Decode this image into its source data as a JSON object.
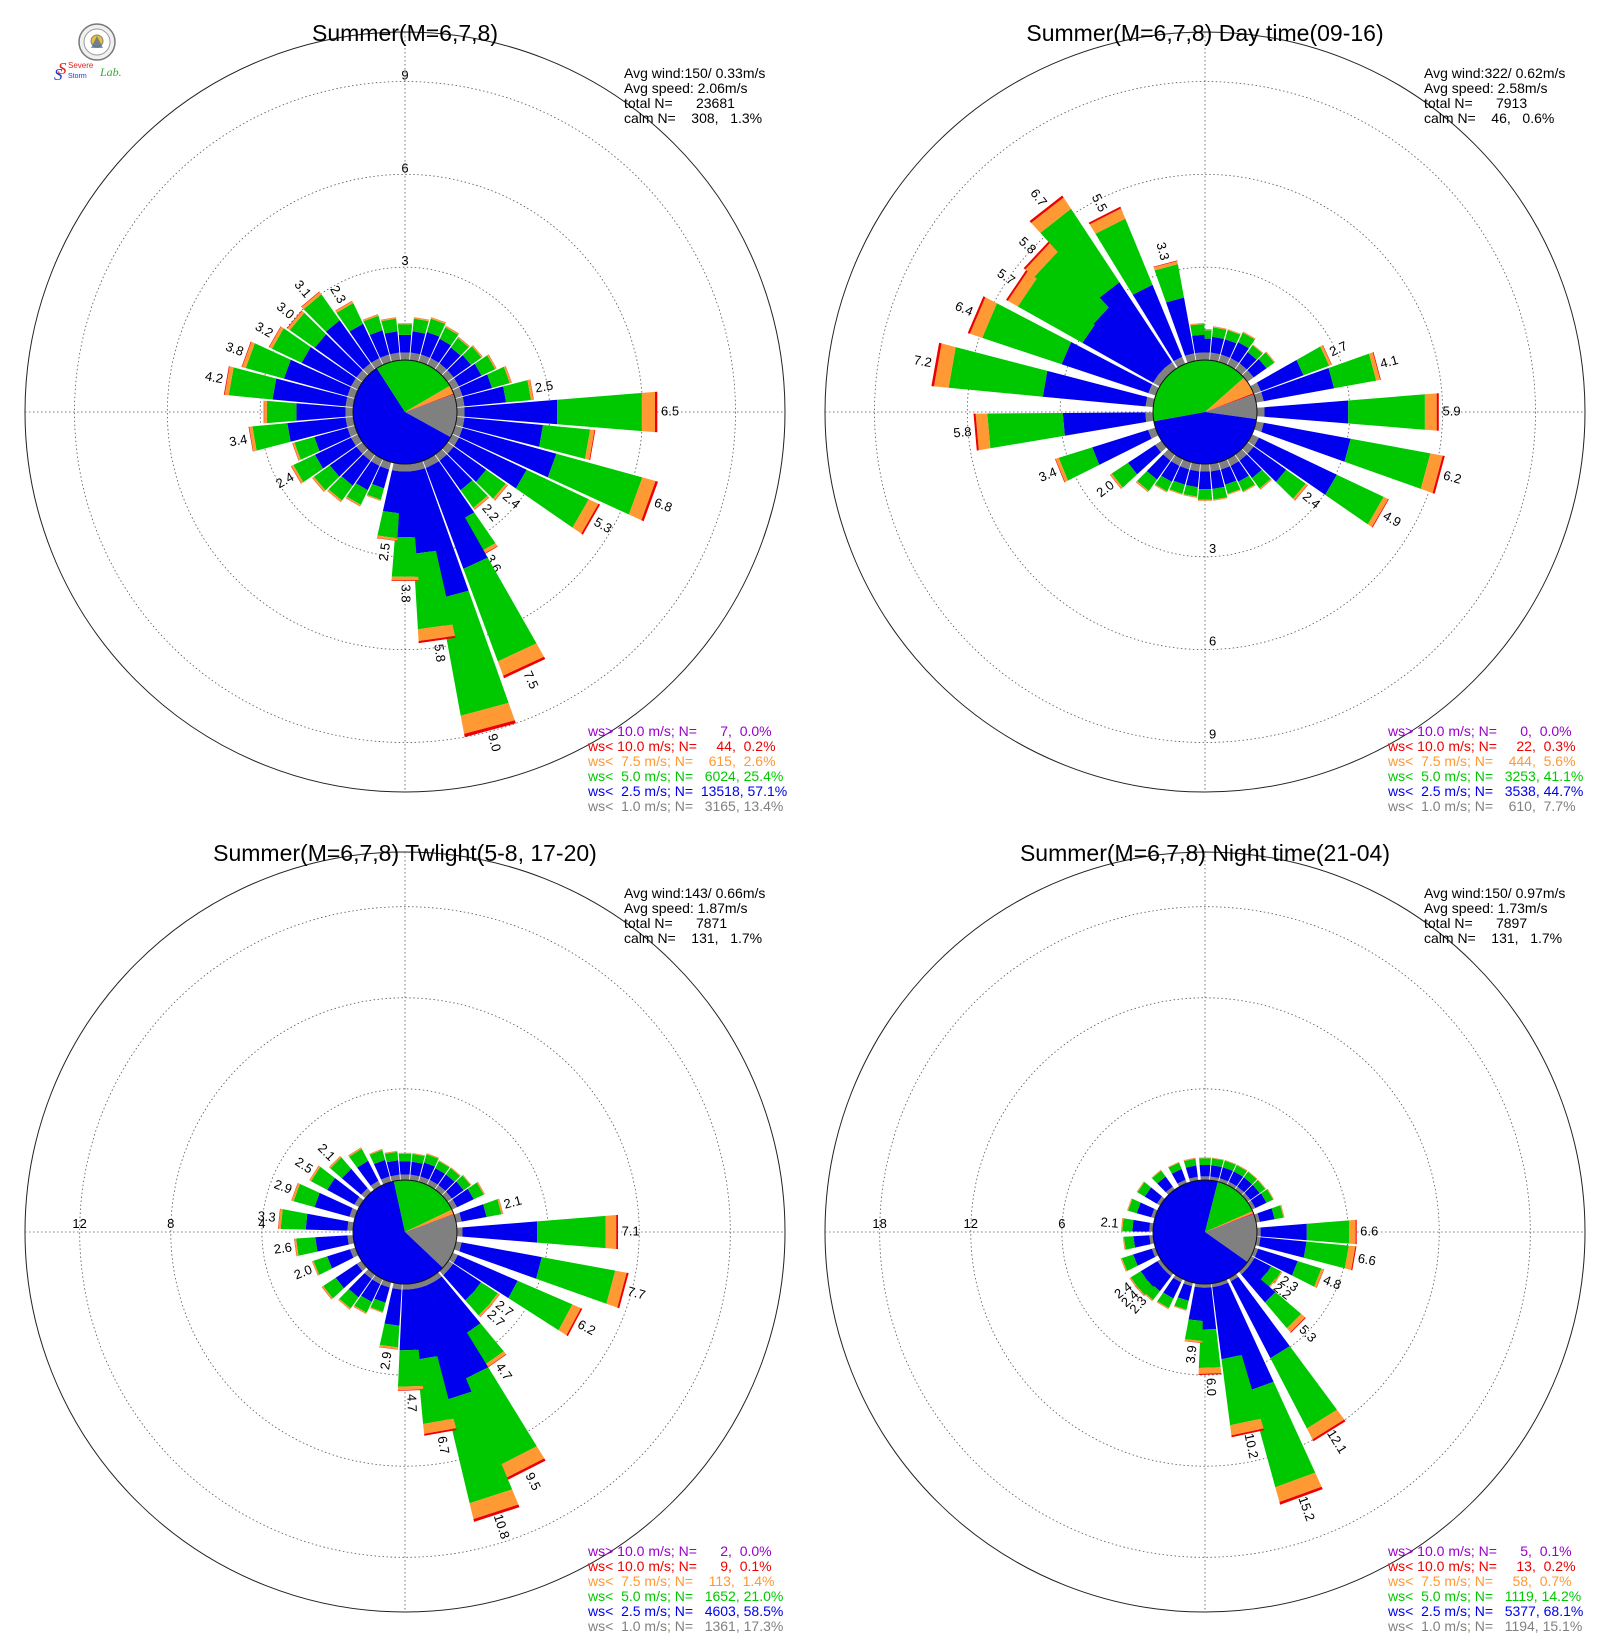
{
  "logo": {
    "line1": "Severe",
    "line2": "Storm",
    "line3": "Lab."
  },
  "colors": {
    "calm": "#808080",
    "ws1": "#0000ee",
    "ws2": "#00c800",
    "ws3": "#ff9933",
    "ws4": "#ee0000",
    "ws5": "#9900cc",
    "grid": "#555555"
  },
  "legend_colors": [
    "#9900cc",
    "#ee0000",
    "#ff9933",
    "#00c800",
    "#0000ee",
    "#808080"
  ],
  "panels": [
    {
      "title": "Summer(M=6,7,8)",
      "stats": [
        "Avg wind:150/ 0.33m/s",
        "Avg speed: 2.06m/s",
        "total N=      23681",
        "calm N=    308,   1.3%"
      ],
      "legend": [
        "ws> 10.0 m/s; N=      7,  0.0%",
        "ws< 10.0 m/s; N=     44,  0.2%",
        "ws<  7.5 m/s; N=    615,  2.6%",
        "ws<  5.0 m/s; N=   6024, 25.4%",
        "ws<  2.5 m/s; N=  13518, 57.1%",
        "ws<  1.0 m/s; N=   3165, 13.4%"
      ],
      "chart_data": {
        "type": "wind_rose",
        "rings": [
          3,
          6,
          9
        ],
        "ring_labels": [
          "3",
          "6",
          "9"
        ],
        "ring_label_side": "north",
        "rmax": 10.6,
        "pie": [
          13.4,
          57.1,
          25.4,
          2.6,
          0.2,
          0.0
        ],
        "directions": [
          {
            "dir": 0,
            "value": 1.2,
            "label": ""
          },
          {
            "dir": 10,
            "value": 1.4,
            "label": ""
          },
          {
            "dir": 20,
            "value": 1.5,
            "label": ""
          },
          {
            "dir": 30,
            "value": 1.4,
            "label": ""
          },
          {
            "dir": 40,
            "value": 1.3,
            "label": ""
          },
          {
            "dir": 50,
            "value": 1.4,
            "label": ""
          },
          {
            "dir": 60,
            "value": 1.6,
            "label": ""
          },
          {
            "dir": 70,
            "value": 1.9,
            "label": ""
          },
          {
            "dir": 80,
            "value": 2.5,
            "label": "2.5"
          },
          {
            "dir": 90,
            "value": 6.5,
            "label": "6.5"
          },
          {
            "dir": 100,
            "value": 4.5,
            "label": ""
          },
          {
            "dir": 110,
            "value": 6.8,
            "label": "6.8"
          },
          {
            "dir": 120,
            "value": 5.3,
            "label": "5.3"
          },
          {
            "dir": 130,
            "value": 2.4,
            "label": "2.4"
          },
          {
            "dir": 140,
            "value": 2.2,
            "label": "2.2"
          },
          {
            "dir": 150,
            "value": 3.6,
            "label": "3.6"
          },
          {
            "dir": 155,
            "value": 7.5,
            "label": "7.5"
          },
          {
            "dir": 165,
            "value": 9.0,
            "label": "9.0"
          },
          {
            "dir": 172,
            "value": 5.8,
            "label": "5.8"
          },
          {
            "dir": 180,
            "value": 3.8,
            "label": "3.8"
          },
          {
            "dir": 188,
            "value": 2.5,
            "label": "2.5"
          },
          {
            "dir": 200,
            "value": 1.3,
            "label": ""
          },
          {
            "dir": 210,
            "value": 1.7,
            "label": ""
          },
          {
            "dir": 220,
            "value": 1.9,
            "label": ""
          },
          {
            "dir": 230,
            "value": 2.0,
            "label": ""
          },
          {
            "dir": 240,
            "value": 2.4,
            "label": "2.4"
          },
          {
            "dir": 250,
            "value": 2.1,
            "label": ""
          },
          {
            "dir": 260,
            "value": 3.4,
            "label": "3.4"
          },
          {
            "dir": 270,
            "value": 2.9,
            "label": ""
          },
          {
            "dir": 280,
            "value": 4.2,
            "label": "4.2"
          },
          {
            "dir": 290,
            "value": 3.8,
            "label": "3.8"
          },
          {
            "dir": 300,
            "value": 3.2,
            "label": "3.2"
          },
          {
            "dir": 310,
            "value": 3.0,
            "label": "3.0"
          },
          {
            "dir": 320,
            "value": 3.1,
            "label": "3.1"
          },
          {
            "dir": 330,
            "value": 2.3,
            "label": "2.3"
          },
          {
            "dir": 340,
            "value": 1.6,
            "label": ""
          },
          {
            "dir": 350,
            "value": 1.4,
            "label": ""
          }
        ]
      }
    },
    {
      "title": "Summer(M=6,7,8) Day time(09-16)",
      "stats": [
        "Avg wind:322/ 0.62m/s",
        "Avg speed: 2.58m/s",
        "total N=      7913",
        "calm N=    46,   0.6%"
      ],
      "legend": [
        "ws> 10.0 m/s; N=      0,  0.0%",
        "ws< 10.0 m/s; N=     22,  0.3%",
        "ws<  7.5 m/s; N=    444,  5.6%",
        "ws<  5.0 m/s; N=   3253, 41.1%",
        "ws<  2.5 m/s; N=   3538, 44.7%",
        "ws<  1.0 m/s; N=    610,  7.7%"
      ],
      "chart_data": {
        "type": "wind_rose",
        "rings": [
          3,
          6,
          9
        ],
        "ring_labels": [
          "3",
          "6",
          "9"
        ],
        "ring_label_side": "south",
        "rmax": 10.6,
        "pie": [
          7.7,
          44.7,
          41.1,
          5.6,
          0.3,
          0.0
        ],
        "directions": [
          {
            "dir": 0,
            "value": 1.0,
            "label": ""
          },
          {
            "dir": 10,
            "value": 1.1,
            "label": ""
          },
          {
            "dir": 20,
            "value": 1.1,
            "label": ""
          },
          {
            "dir": 30,
            "value": 1.2,
            "label": ""
          },
          {
            "dir": 40,
            "value": 1.0,
            "label": ""
          },
          {
            "dir": 50,
            "value": 1.1,
            "label": ""
          },
          {
            "dir": 65,
            "value": 2.7,
            "label": "2.7"
          },
          {
            "dir": 75,
            "value": 4.1,
            "label": "4.1"
          },
          {
            "dir": 90,
            "value": 5.9,
            "label": "5.9"
          },
          {
            "dir": 105,
            "value": 6.2,
            "label": "6.2"
          },
          {
            "dir": 120,
            "value": 4.9,
            "label": "4.9"
          },
          {
            "dir": 130,
            "value": 2.4,
            "label": "2.4"
          },
          {
            "dir": 140,
            "value": 1.4,
            "label": ""
          },
          {
            "dir": 150,
            "value": 1.2,
            "label": ""
          },
          {
            "dir": 160,
            "value": 1.1,
            "label": ""
          },
          {
            "dir": 170,
            "value": 1.2,
            "label": ""
          },
          {
            "dir": 180,
            "value": 1.2,
            "label": ""
          },
          {
            "dir": 190,
            "value": 1.1,
            "label": ""
          },
          {
            "dir": 200,
            "value": 1.1,
            "label": ""
          },
          {
            "dir": 210,
            "value": 1.2,
            "label": ""
          },
          {
            "dir": 220,
            "value": 1.5,
            "label": ""
          },
          {
            "dir": 232,
            "value": 2.0,
            "label": "2.0"
          },
          {
            "dir": 248,
            "value": 3.4,
            "label": "3.4"
          },
          {
            "dir": 265,
            "value": 5.8,
            "label": "5.8"
          },
          {
            "dir": 280,
            "value": 7.2,
            "label": "7.2"
          },
          {
            "dir": 293,
            "value": 6.4,
            "label": "6.4"
          },
          {
            "dir": 304,
            "value": 5.7,
            "label": "5.7"
          },
          {
            "dir": 313,
            "value": 5.8,
            "label": "5.8"
          },
          {
            "dir": 322,
            "value": 6.7,
            "label": "6.7"
          },
          {
            "dir": 333,
            "value": 5.5,
            "label": "5.5"
          },
          {
            "dir": 345,
            "value": 3.3,
            "label": "3.3"
          },
          {
            "dir": 355,
            "value": 1.2,
            "label": ""
          }
        ]
      }
    },
    {
      "title": "Summer(M=6,7,8) Twlight(5-8, 17-20)",
      "stats": [
        "Avg wind:143/ 0.66m/s",
        "Avg speed: 1.87m/s",
        "total N=      7871",
        "calm N=    131,   1.7%"
      ],
      "legend": [
        "ws> 10.0 m/s; N=      2,  0.0%",
        "ws< 10.0 m/s; N=      9,  0.1%",
        "ws<  7.5 m/s; N=    113,  1.4%",
        "ws<  5.0 m/s; N=   1652, 21.0%",
        "ws<  2.5 m/s; N=   4603, 58.5%",
        "ws<  1.0 m/s; N=   1361, 17.3%"
      ],
      "chart_data": {
        "type": "wind_rose",
        "rings": [
          4,
          8,
          12
        ],
        "ring_labels": [
          "4",
          "8",
          "12"
        ],
        "ring_label_side": "west",
        "rmax": 14.4,
        "pie": [
          17.3,
          58.5,
          21.0,
          1.4,
          0.1,
          0.0
        ],
        "directions": [
          {
            "dir": 0,
            "value": 1.2,
            "label": ""
          },
          {
            "dir": 10,
            "value": 1.2,
            "label": ""
          },
          {
            "dir": 20,
            "value": 1.3,
            "label": ""
          },
          {
            "dir": 30,
            "value": 1.2,
            "label": ""
          },
          {
            "dir": 40,
            "value": 1.2,
            "label": ""
          },
          {
            "dir": 50,
            "value": 1.3,
            "label": ""
          },
          {
            "dir": 60,
            "value": 1.6,
            "label": ""
          },
          {
            "dir": 75,
            "value": 2.1,
            "label": "2.1"
          },
          {
            "dir": 90,
            "value": 7.1,
            "label": "7.1"
          },
          {
            "dir": 105,
            "value": 7.7,
            "label": "7.7"
          },
          {
            "dir": 118,
            "value": 6.2,
            "label": "6.2"
          },
          {
            "dir": 128,
            "value": 2.7,
            "label": "2.7"
          },
          {
            "dir": 134,
            "value": 2.7,
            "label": "2.7"
          },
          {
            "dir": 145,
            "value": 4.7,
            "label": "4.7"
          },
          {
            "dir": 153,
            "value": 9.5,
            "label": "9.5"
          },
          {
            "dir": 162,
            "value": 10.8,
            "label": "10.8"
          },
          {
            "dir": 170,
            "value": 6.7,
            "label": "6.7"
          },
          {
            "dir": 178,
            "value": 4.7,
            "label": "4.7"
          },
          {
            "dir": 188,
            "value": 2.9,
            "label": "2.9"
          },
          {
            "dir": 200,
            "value": 1.4,
            "label": ""
          },
          {
            "dir": 210,
            "value": 1.7,
            "label": ""
          },
          {
            "dir": 220,
            "value": 1.9,
            "label": ""
          },
          {
            "dir": 232,
            "value": 2.1,
            "label": ""
          },
          {
            "dir": 248,
            "value": 2.0,
            "label": "2.0"
          },
          {
            "dir": 262,
            "value": 2.6,
            "label": "2.6"
          },
          {
            "dir": 276,
            "value": 3.3,
            "label": "3.3"
          },
          {
            "dir": 290,
            "value": 2.9,
            "label": "2.9"
          },
          {
            "dir": 303,
            "value": 2.5,
            "label": "2.5"
          },
          {
            "dir": 315,
            "value": 2.1,
            "label": "2.1"
          },
          {
            "dir": 328,
            "value": 1.9,
            "label": ""
          },
          {
            "dir": 340,
            "value": 1.5,
            "label": ""
          },
          {
            "dir": 350,
            "value": 1.3,
            "label": ""
          }
        ]
      }
    },
    {
      "title": "Summer(M=6,7,8) Night time(21-04)",
      "stats": [
        "Avg wind:150/ 0.97m/s",
        "Avg speed: 1.73m/s",
        "total N=      7897",
        "calm N=    131,   1.7%"
      ],
      "legend": [
        "ws> 10.0 m/s; N=      5,  0.1%",
        "ws< 10.0 m/s; N=     13,  0.2%",
        "ws<  7.5 m/s; N=     58,  0.7%",
        "ws<  5.0 m/s; N=   1119, 14.2%",
        "ws<  2.5 m/s; N=   5377, 68.1%",
        "ws<  1.0 m/s; N=   1194, 15.1%"
      ],
      "chart_data": {
        "type": "wind_rose",
        "rings": [
          6,
          12,
          18
        ],
        "ring_labels": [
          "6",
          "12",
          "18"
        ],
        "ring_label_side": "west",
        "rmax": 21.6,
        "pie": [
          15.1,
          68.1,
          14.2,
          0.7,
          0.2,
          0.1
        ],
        "directions": [
          {
            "dir": 0,
            "value": 1.5,
            "label": ""
          },
          {
            "dir": 10,
            "value": 1.5,
            "label": ""
          },
          {
            "dir": 20,
            "value": 1.5,
            "label": ""
          },
          {
            "dir": 30,
            "value": 1.5,
            "label": ""
          },
          {
            "dir": 40,
            "value": 1.5,
            "label": ""
          },
          {
            "dir": 50,
            "value": 1.5,
            "label": ""
          },
          {
            "dir": 60,
            "value": 1.6,
            "label": ""
          },
          {
            "dir": 75,
            "value": 1.9,
            "label": ""
          },
          {
            "dir": 90,
            "value": 6.6,
            "label": "6.6"
          },
          {
            "dir": 100,
            "value": 6.6,
            "label": "6.6"
          },
          {
            "dir": 112,
            "value": 4.8,
            "label": "4.8"
          },
          {
            "dir": 122,
            "value": 2.3,
            "label": "2.3"
          },
          {
            "dir": 128,
            "value": 2.2,
            "label": "2.2"
          },
          {
            "dir": 135,
            "value": 5.3,
            "label": "5.3"
          },
          {
            "dir": 148,
            "value": 12.1,
            "label": "12.1"
          },
          {
            "dir": 160,
            "value": 15.2,
            "label": "15.2"
          },
          {
            "dir": 168,
            "value": 10.2,
            "label": "10.2"
          },
          {
            "dir": 178,
            "value": 6.0,
            "label": "6.0"
          },
          {
            "dir": 186,
            "value": 3.9,
            "label": "3.9"
          },
          {
            "dir": 198,
            "value": 1.9,
            "label": ""
          },
          {
            "dir": 210,
            "value": 2.2,
            "label": ""
          },
          {
            "dir": 222,
            "value": 2.3,
            "label": "2.3"
          },
          {
            "dir": 228,
            "value": 2.4,
            "label": "2.4"
          },
          {
            "dir": 234,
            "value": 2.4,
            "label": "2.4"
          },
          {
            "dir": 248,
            "value": 2.4,
            "label": ""
          },
          {
            "dir": 262,
            "value": 2.0,
            "label": ""
          },
          {
            "dir": 275,
            "value": 2.1,
            "label": "2.1"
          },
          {
            "dir": 290,
            "value": 1.9,
            "label": ""
          },
          {
            "dir": 305,
            "value": 1.8,
            "label": ""
          },
          {
            "dir": 320,
            "value": 1.6,
            "label": ""
          },
          {
            "dir": 335,
            "value": 1.5,
            "label": ""
          },
          {
            "dir": 348,
            "value": 1.5,
            "label": ""
          }
        ]
      }
    }
  ]
}
